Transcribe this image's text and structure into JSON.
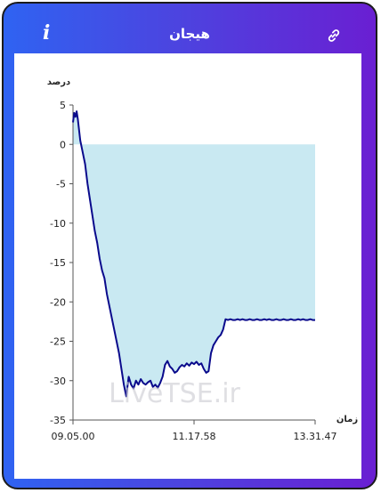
{
  "header": {
    "title": "هیجان",
    "info_icon": "info-icon",
    "link_icon": "link-icon"
  },
  "watermark": "LiveTSE.ir",
  "colors": {
    "frame_start": "#2f63f2",
    "frame_end": "#6a1fd2",
    "line": "#0a0a8c",
    "fill": "#c9e9f2"
  },
  "chart_data": {
    "type": "area",
    "title": "",
    "ylabel": "درصد",
    "xlabel": "زمان",
    "ylim": [
      -35,
      5
    ],
    "yticks": [
      5,
      0,
      -5,
      -10,
      -15,
      -20,
      -25,
      -30,
      -35
    ],
    "xtick_labels": [
      "09.05.00",
      "11.17.58",
      "13.31.47"
    ],
    "xlim": [
      0,
      100
    ],
    "xtick_positions": [
      0,
      50,
      100
    ],
    "grid": false,
    "legend": "none",
    "x": [
      0,
      0.5,
      1,
      1.5,
      2,
      3,
      4,
      5,
      6,
      7,
      8,
      9,
      10,
      11,
      12,
      13,
      14,
      15,
      16,
      17,
      18,
      19,
      20,
      21,
      22,
      23,
      24,
      25,
      26,
      27,
      28,
      29,
      30,
      31,
      32,
      33,
      34,
      35,
      36,
      37,
      38,
      39,
      40,
      41,
      42,
      43,
      44,
      45,
      46,
      47,
      48,
      49,
      50,
      51,
      52,
      53,
      54,
      55,
      56,
      57,
      58,
      59,
      60,
      61,
      62,
      63,
      64,
      65,
      66,
      67,
      68,
      69,
      70,
      71,
      72,
      73,
      74,
      75,
      76,
      77,
      78,
      79,
      80,
      81,
      82,
      83,
      84,
      85,
      86,
      87,
      88,
      89,
      90,
      91,
      92,
      93,
      94,
      95,
      96,
      97,
      98,
      99,
      100
    ],
    "values": [
      2.8,
      4.0,
      3.5,
      4.2,
      3.2,
      0.5,
      -1,
      -2.5,
      -5,
      -7,
      -9,
      -11,
      -12.5,
      -14.5,
      -16,
      -17,
      -19,
      -20.5,
      -22,
      -23.5,
      -25,
      -26.5,
      -28.5,
      -30.5,
      -32,
      -29.5,
      -30.5,
      -31,
      -30,
      -30.5,
      -29.8,
      -30.3,
      -30.5,
      -30.2,
      -30.0,
      -30.8,
      -30.5,
      -30.9,
      -30.3,
      -29.5,
      -28.0,
      -27.5,
      -28.2,
      -28.5,
      -29.0,
      -28.8,
      -28.3,
      -28.0,
      -28.2,
      -27.8,
      -28.1,
      -27.7,
      -27.9,
      -27.6,
      -28.0,
      -27.8,
      -28.5,
      -29.0,
      -28.8,
      -26.5,
      -25.5,
      -25.0,
      -24.5,
      -24.2,
      -23.5,
      -22.2,
      -22.3,
      -22.2,
      -22.3,
      -22.3,
      -22.2,
      -22.3,
      -22.2,
      -22.3,
      -22.3,
      -22.2,
      -22.3,
      -22.3,
      -22.2,
      -22.3,
      -22.3,
      -22.2,
      -22.3,
      -22.2,
      -22.3,
      -22.3,
      -22.2,
      -22.3,
      -22.3,
      -22.2,
      -22.3,
      -22.3,
      -22.2,
      -22.3,
      -22.3,
      -22.2,
      -22.3,
      -22.2,
      -22.3,
      -22.3,
      -22.2,
      -22.3,
      -22.3
    ]
  }
}
